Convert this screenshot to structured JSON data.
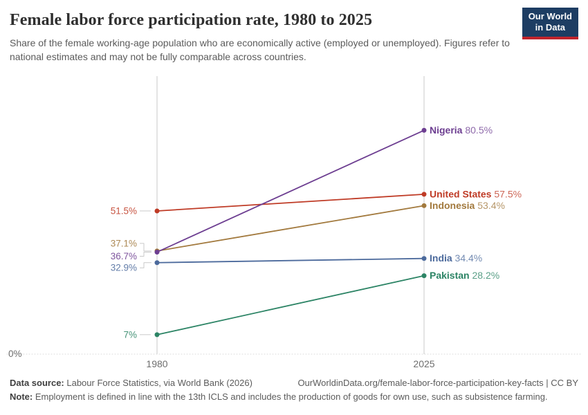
{
  "header": {
    "title": "Female labor force participation rate, 1980 to 2025",
    "subtitle": "Share of the female working-age population who are economically active (employed or unemployed). Figures refer to national estimates and may not be fully comparable across countries.",
    "logo_line1": "Our World",
    "logo_line2": "in Data",
    "logo_colors": {
      "background": "#1d3d63",
      "stripe": "#c0242c"
    }
  },
  "chart_data": {
    "type": "line",
    "variant": "slope",
    "x": [
      "1980",
      "2025"
    ],
    "unit": "%",
    "ylim": [
      0,
      100
    ],
    "baseline_label": "0%",
    "grid": "dotted zero baseline only",
    "legend_position": "end-of-line labels",
    "axis_color": "#c9c9c9",
    "tick_color": "#6e6e6e",
    "series": [
      {
        "name": "Nigeria",
        "color": "#6d3e91",
        "values": [
          36.7,
          80.5
        ],
        "start_label": "36.7%",
        "end_label": "80.5%"
      },
      {
        "name": "United States",
        "color": "#bf3b26",
        "values": [
          51.5,
          57.5
        ],
        "start_label": "51.5%",
        "end_label": "57.5%"
      },
      {
        "name": "Indonesia",
        "color": "#a2793d",
        "values": [
          37.1,
          53.4
        ],
        "start_label": "37.1%",
        "end_label": "53.4%"
      },
      {
        "name": "India",
        "color": "#4c6a9c",
        "values": [
          32.9,
          34.4
        ],
        "start_label": "32.9%",
        "end_label": "34.4%"
      },
      {
        "name": "Pakistan",
        "color": "#2c8465",
        "values": [
          7,
          28.2
        ],
        "start_label": "7%",
        "end_label": "28.2%"
      }
    ]
  },
  "footer": {
    "source_label": "Data source:",
    "source_text": " Labour Force Statistics, via World Bank (2026)",
    "url_text": "OurWorldinData.org/female-labor-force-participation-key-facts | CC BY",
    "note_label": "Note:",
    "note_text": " Employment is defined in line with the 13th ICLS and includes the production of goods for own use, such as subsistence farming."
  }
}
